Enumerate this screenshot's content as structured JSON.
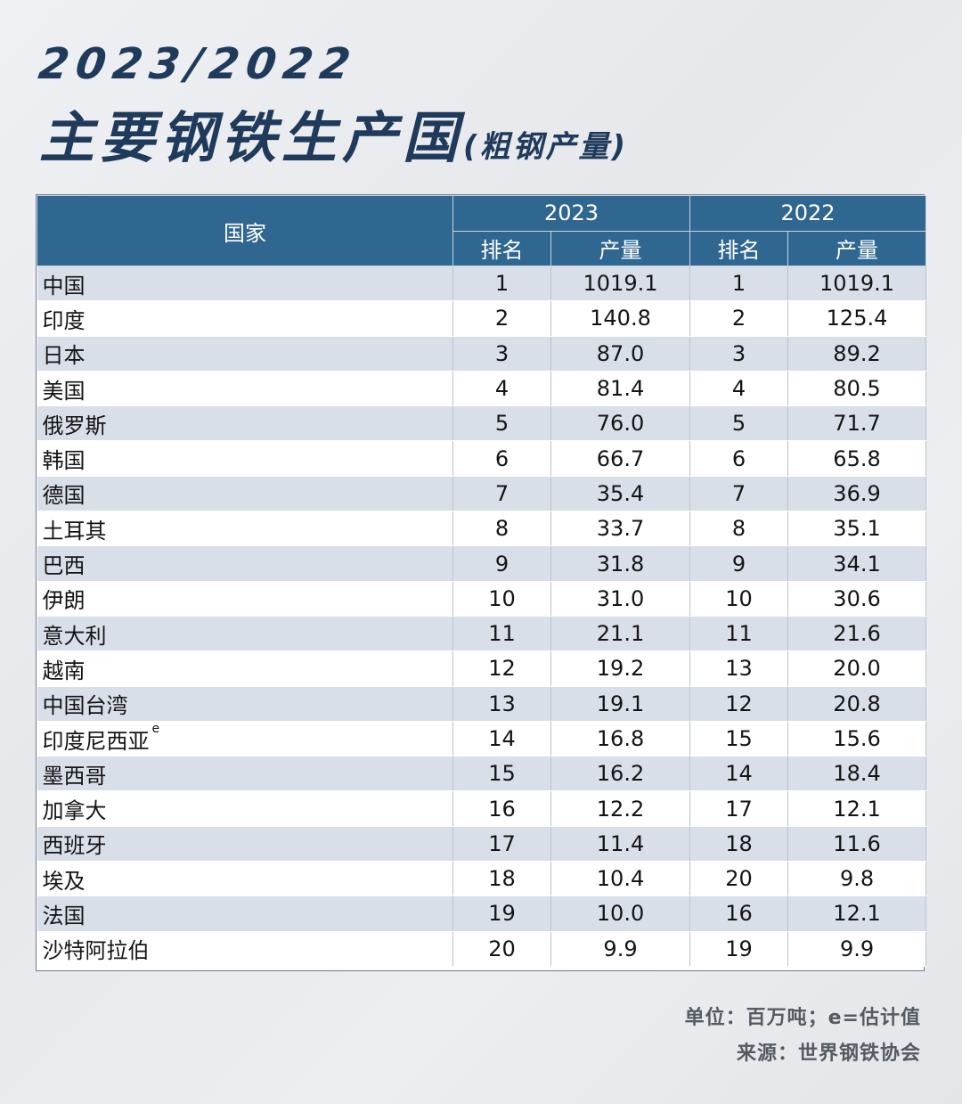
{
  "title": {
    "year": "2023/2022",
    "main": "主要钢铁生产国",
    "sub": "(粗钢产量)"
  },
  "table": {
    "header": {
      "country": "国家",
      "year_a": "2023",
      "year_b": "2022",
      "rank": "排名",
      "output": "产量"
    },
    "rows": [
      {
        "country": "中国",
        "sup": "",
        "rank2023": "1",
        "prod2023": "1019.1",
        "rank2022": "1",
        "prod2022": "1019.1"
      },
      {
        "country": "印度",
        "sup": "",
        "rank2023": "2",
        "prod2023": "140.8",
        "rank2022": "2",
        "prod2022": "125.4"
      },
      {
        "country": "日本",
        "sup": "",
        "rank2023": "3",
        "prod2023": "87.0",
        "rank2022": "3",
        "prod2022": "89.2"
      },
      {
        "country": "美国",
        "sup": "",
        "rank2023": "4",
        "prod2023": "81.4",
        "rank2022": "4",
        "prod2022": "80.5"
      },
      {
        "country": "俄罗斯",
        "sup": "",
        "rank2023": "5",
        "prod2023": "76.0",
        "rank2022": "5",
        "prod2022": "71.7"
      },
      {
        "country": "韩国",
        "sup": "",
        "rank2023": "6",
        "prod2023": "66.7",
        "rank2022": "6",
        "prod2022": "65.8"
      },
      {
        "country": "德国",
        "sup": "",
        "rank2023": "7",
        "prod2023": "35.4",
        "rank2022": "7",
        "prod2022": "36.9"
      },
      {
        "country": "土耳其",
        "sup": "",
        "rank2023": "8",
        "prod2023": "33.7",
        "rank2022": "8",
        "prod2022": "35.1"
      },
      {
        "country": "巴西",
        "sup": "",
        "rank2023": "9",
        "prod2023": "31.8",
        "rank2022": "9",
        "prod2022": "34.1"
      },
      {
        "country": "伊朗",
        "sup": "",
        "rank2023": "10",
        "prod2023": "31.0",
        "rank2022": "10",
        "prod2022": "30.6"
      },
      {
        "country": "意大利",
        "sup": "",
        "rank2023": "11",
        "prod2023": "21.1",
        "rank2022": "11",
        "prod2022": "21.6"
      },
      {
        "country": "越南",
        "sup": "",
        "rank2023": "12",
        "prod2023": "19.2",
        "rank2022": "13",
        "prod2022": "20.0"
      },
      {
        "country": "中国台湾",
        "sup": "",
        "rank2023": "13",
        "prod2023": "19.1",
        "rank2022": "12",
        "prod2022": "20.8"
      },
      {
        "country": "印度尼西亚",
        "sup": "e",
        "rank2023": "14",
        "prod2023": "16.8",
        "rank2022": "15",
        "prod2022": "15.6"
      },
      {
        "country": "墨西哥",
        "sup": "",
        "rank2023": "15",
        "prod2023": "16.2",
        "rank2022": "14",
        "prod2022": "18.4"
      },
      {
        "country": "加拿大",
        "sup": "",
        "rank2023": "16",
        "prod2023": "12.2",
        "rank2022": "17",
        "prod2022": "12.1"
      },
      {
        "country": "西班牙",
        "sup": "",
        "rank2023": "17",
        "prod2023": "11.4",
        "rank2022": "18",
        "prod2022": "11.6"
      },
      {
        "country": "埃及",
        "sup": "",
        "rank2023": "18",
        "prod2023": "10.4",
        "rank2022": "20",
        "prod2022": "9.8"
      },
      {
        "country": "法国",
        "sup": "",
        "rank2023": "19",
        "prod2023": "10.0",
        "rank2022": "16",
        "prod2022": "12.1"
      },
      {
        "country": "沙特阿拉伯",
        "sup": "",
        "rank2023": "20",
        "prod2023": "9.9",
        "rank2022": "19",
        "prod2022": "9.9"
      }
    ]
  },
  "footer": {
    "unit": "单位：百万吨；e=估计值",
    "source": "来源：世界钢铁协会"
  },
  "colors": {
    "title": "#1f3a5a",
    "header_bg": "#2f6790",
    "row_alt": "#d8dfe9"
  }
}
